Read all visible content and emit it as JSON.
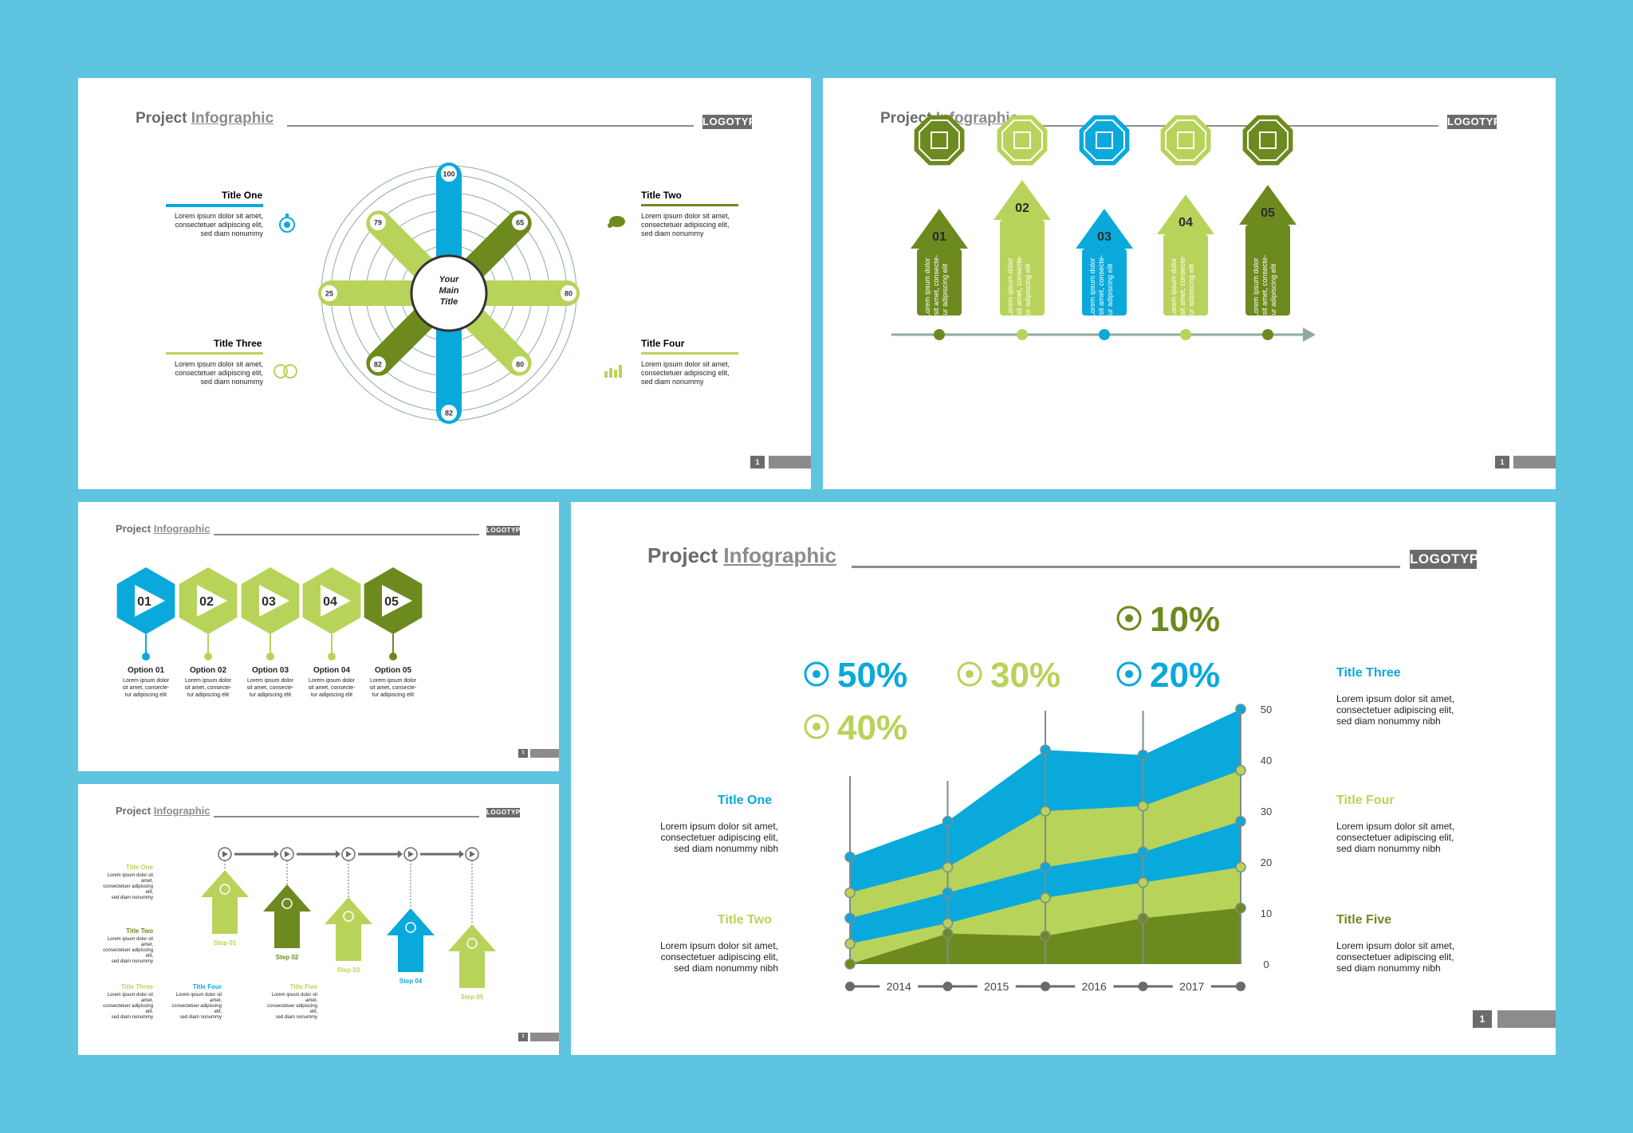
{
  "colors": {
    "blue": "#0aa9dc",
    "light": "#b8d35a",
    "dark": "#6d8a1f",
    "gray": "#6b6b6b",
    "ring": "#8fa9a0"
  },
  "header": {
    "title_a": "Project",
    "title_b": "Infographic",
    "logo": "LOGOTYPE",
    "page": "1"
  },
  "lorem": {
    "three_line": "Lorem ipsum dolor sit amet,\nconsectetuer adipiscing elit,\nsed diam nonummy",
    "three_line_nibh": "Lorem ipsum dolor sit amet,\nconsectetuer adipiscing elit,\nsed diam nonummy nibh",
    "vertical": "Lorem ipsum dolor sit amet, consecte- tur adipiscing elit",
    "option": "Lorem ipsum dolor\nsit amet, consecte-\ntur adipiscing elit",
    "small": "Lorem ipsum dolor sit amet,\nconsectetuer adipiscing elit,\nsed diam nonummy"
  },
  "slide1": {
    "center": "Your\nMain\nTitle",
    "titles": [
      "Title One",
      "Title Two",
      "Title Three",
      "Title Four"
    ],
    "spokes": [
      {
        "value": "100",
        "color": "blue"
      },
      {
        "value": "65",
        "color": "dark"
      },
      {
        "value": "80",
        "color": "light"
      },
      {
        "value": "80",
        "color": "light"
      },
      {
        "value": "82",
        "color": "blue"
      },
      {
        "value": "82",
        "color": "dark"
      },
      {
        "value": "25",
        "color": "light"
      },
      {
        "value": "79",
        "color": "light"
      }
    ],
    "icons": [
      "stopwatch-icon",
      "bug-icon",
      "heads-icon",
      "chart-icon"
    ]
  },
  "slide2": {
    "arrows": [
      {
        "num": "01",
        "color": "dark"
      },
      {
        "num": "02",
        "color": "light"
      },
      {
        "num": "03",
        "color": "blue"
      },
      {
        "num": "04",
        "color": "light"
      },
      {
        "num": "05",
        "color": "dark"
      }
    ],
    "icons": [
      "document-dollar-icon",
      "bar-chart-icon",
      "briefcase-icon",
      "checkbox-icon",
      "pie-chart-icon"
    ]
  },
  "slide3": {
    "hexes": [
      {
        "num": "01",
        "color": "blue"
      },
      {
        "num": "02",
        "color": "light"
      },
      {
        "num": "03",
        "color": "light"
      },
      {
        "num": "04",
        "color": "light"
      },
      {
        "num": "05",
        "color": "dark"
      }
    ],
    "options": [
      "Option 01",
      "Option 02",
      "Option 03",
      "Option 04",
      "Option 05"
    ]
  },
  "slide4": {
    "steps": [
      {
        "label": "Step 01",
        "color": "light"
      },
      {
        "label": "Step 02",
        "color": "dark"
      },
      {
        "label": "Step 03",
        "color": "light"
      },
      {
        "label": "Step 04",
        "color": "blue"
      },
      {
        "label": "Step 05",
        "color": "light"
      }
    ],
    "titles": [
      "Title One",
      "Title Two",
      "Title Three",
      "Title Four",
      "Title Five"
    ]
  },
  "slide5": {
    "percents": [
      {
        "value": "10%",
        "color": "dark",
        "icon": "dollar-cycle-icon"
      },
      {
        "value": "50%",
        "color": "blue",
        "icon": "stopwatch-icon"
      },
      {
        "value": "30%",
        "color": "light",
        "icon": "heads-icon"
      },
      {
        "value": "20%",
        "color": "blue",
        "icon": "chart-icon"
      },
      {
        "value": "40%",
        "color": "light",
        "icon": "bug-icon"
      }
    ],
    "titles": {
      "one": "Title One",
      "two": "Title Two",
      "three": "Title Three",
      "four": "Title Four",
      "five": "Title Five"
    }
  },
  "chart_data": {
    "type": "area",
    "x": [
      "",
      "2014",
      "2015",
      "2016",
      "2017"
    ],
    "ylim": [
      0,
      50
    ],
    "yticks": [
      0,
      10,
      20,
      30,
      40,
      50
    ],
    "series": [
      {
        "color": "dark",
        "values": [
          0,
          6,
          5.5,
          9,
          11
        ]
      },
      {
        "color": "light",
        "values": [
          4,
          8,
          13,
          16,
          19
        ]
      },
      {
        "color": "blue",
        "values": [
          9,
          14,
          19,
          22,
          28
        ]
      },
      {
        "color": "light",
        "values": [
          14,
          19,
          30,
          31,
          38
        ]
      },
      {
        "color": "blue",
        "values": [
          21,
          28,
          42,
          41,
          50
        ]
      }
    ]
  }
}
